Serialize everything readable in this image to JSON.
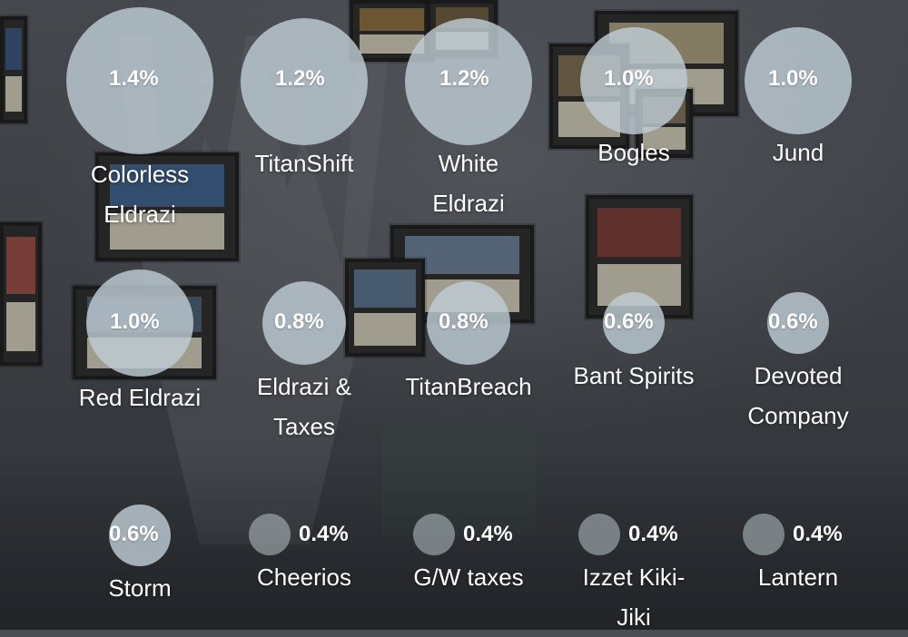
{
  "decks": [
    {
      "name": "Colorless Eldrazi",
      "percent": "1.4%"
    },
    {
      "name": "TitanShift",
      "percent": "1.2%"
    },
    {
      "name": "White Eldrazi",
      "percent": "1.2%"
    },
    {
      "name": "Bogles",
      "percent": "1.0%"
    },
    {
      "name": "Jund",
      "percent": "1.0%"
    },
    {
      "name": "Red Eldrazi",
      "percent": "1.0%"
    },
    {
      "name": "Eldrazi & Taxes",
      "percent": "0.8%"
    },
    {
      "name": "TitanBreach",
      "percent": "0.8%"
    },
    {
      "name": "Bant Spirits",
      "percent": "0.6%"
    },
    {
      "name": "Devoted Company",
      "percent": "0.6%"
    },
    {
      "name": "Storm",
      "percent": "0.6%"
    },
    {
      "name": "Cheerios",
      "percent": "0.4%"
    },
    {
      "name": "G/W taxes",
      "percent": "0.4%"
    },
    {
      "name": "Izzet Kiki-Jiki",
      "percent": "0.4%"
    },
    {
      "name": "Lantern",
      "percent": "0.4%"
    }
  ],
  "colors": {
    "bubble": "#becdd4",
    "text": "#ffffff"
  }
}
